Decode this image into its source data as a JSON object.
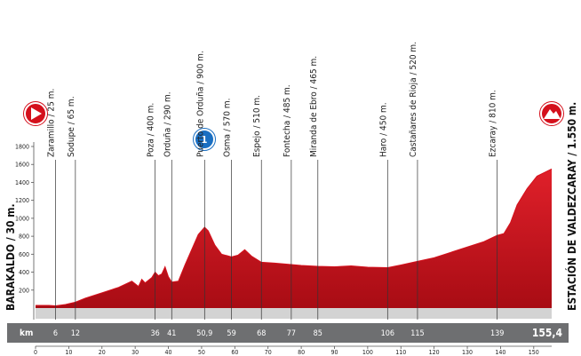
{
  "chart_data": {
    "type": "area",
    "start_label": "BARAKALDO / 30 m.",
    "finish_label": "ESTACIÓN DE VALDEZCARAY / 1.550 m.",
    "km_label": "km",
    "x": [
      0,
      4,
      6,
      9,
      12,
      15,
      20,
      25,
      29,
      31,
      32,
      33,
      35,
      36,
      37,
      38,
      39,
      40,
      41,
      43,
      45,
      47,
      49,
      50.9,
      52,
      54,
      56,
      59,
      61,
      63,
      65,
      68,
      72,
      77,
      80,
      85,
      90,
      95,
      100,
      106,
      110,
      115,
      120,
      125,
      130,
      135,
      139,
      141,
      143,
      145,
      148,
      151,
      155.4
    ],
    "values": [
      30,
      30,
      25,
      40,
      65,
      110,
      170,
      230,
      300,
      240,
      320,
      280,
      340,
      400,
      360,
      380,
      460,
      350,
      290,
      300,
      480,
      650,
      820,
      900,
      860,
      700,
      600,
      570,
      590,
      650,
      580,
      510,
      500,
      485,
      475,
      465,
      460,
      470,
      455,
      450,
      480,
      520,
      560,
      620,
      680,
      740,
      810,
      830,
      950,
      1150,
      1330,
      1470,
      1550
    ],
    "color": "#d4101c",
    "xlim": [
      0,
      155.4
    ],
    "ylim": [
      0,
      1800
    ],
    "xticks": [
      0,
      10,
      20,
      30,
      40,
      50,
      60,
      70,
      80,
      90,
      100,
      110,
      120,
      130,
      140,
      150
    ],
    "yticks": [
      200,
      400,
      600,
      800,
      1000,
      1200,
      1400,
      1600,
      1800
    ],
    "waypoints": [
      {
        "name": "Zaramillo / 25 m.",
        "km": 6
      },
      {
        "name": "Sodupe / 65 m.",
        "km": 12
      },
      {
        "name": "Poza / 400 m.",
        "km": 36
      },
      {
        "name": "Orduña / 290 m.",
        "km": 41
      },
      {
        "name": "Puerto de Orduña / 900 m.",
        "km": {
          "value": 50.9,
          "label": "50,9"
        }
      },
      {
        "name": "Osma / 570 m.",
        "km": 59
      },
      {
        "name": "Espejo / 510 m.",
        "km": 68
      },
      {
        "name": "Fontecha / 485 m.",
        "km": 77
      },
      {
        "name": "Miranda de Ebro / 465 m.",
        "km": 85
      },
      {
        "name": "Haro / 450 m.",
        "km": 106
      },
      {
        "name": "Castañares de Rioja / 520 m.",
        "km": 115
      },
      {
        "name": "Ezcaray / 810 m.",
        "km": 139
      }
    ],
    "finish_km": {
      "value": 155.4,
      "label": "155,4"
    }
  }
}
